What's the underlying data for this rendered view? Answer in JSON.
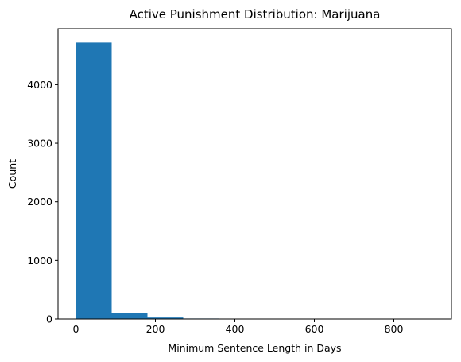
{
  "chart_data": {
    "type": "bar",
    "title": "Active Punishment Distribution: Marijuana",
    "xlabel": "Minimum Sentence Length in Days",
    "ylabel": "Count",
    "bins": [
      {
        "start": 0,
        "end": 90,
        "count": 4720
      },
      {
        "start": 90,
        "end": 180,
        "count": 100
      },
      {
        "start": 180,
        "end": 270,
        "count": 25
      },
      {
        "start": 270,
        "end": 360,
        "count": 8
      },
      {
        "start": 360,
        "end": 450,
        "count": 0
      },
      {
        "start": 450,
        "end": 540,
        "count": 0
      },
      {
        "start": 540,
        "end": 630,
        "count": 0
      },
      {
        "start": 630,
        "end": 720,
        "count": 0
      },
      {
        "start": 720,
        "end": 810,
        "count": 0
      },
      {
        "start": 810,
        "end": 900,
        "count": 5
      }
    ],
    "xlim": [
      -45,
      945
    ],
    "ylim": [
      0,
      4956
    ],
    "xticks": [
      0,
      200,
      400,
      600,
      800
    ],
    "yticks": [
      0,
      1000,
      2000,
      3000,
      4000
    ],
    "bar_color": "#1f77b4",
    "grid": false
  }
}
